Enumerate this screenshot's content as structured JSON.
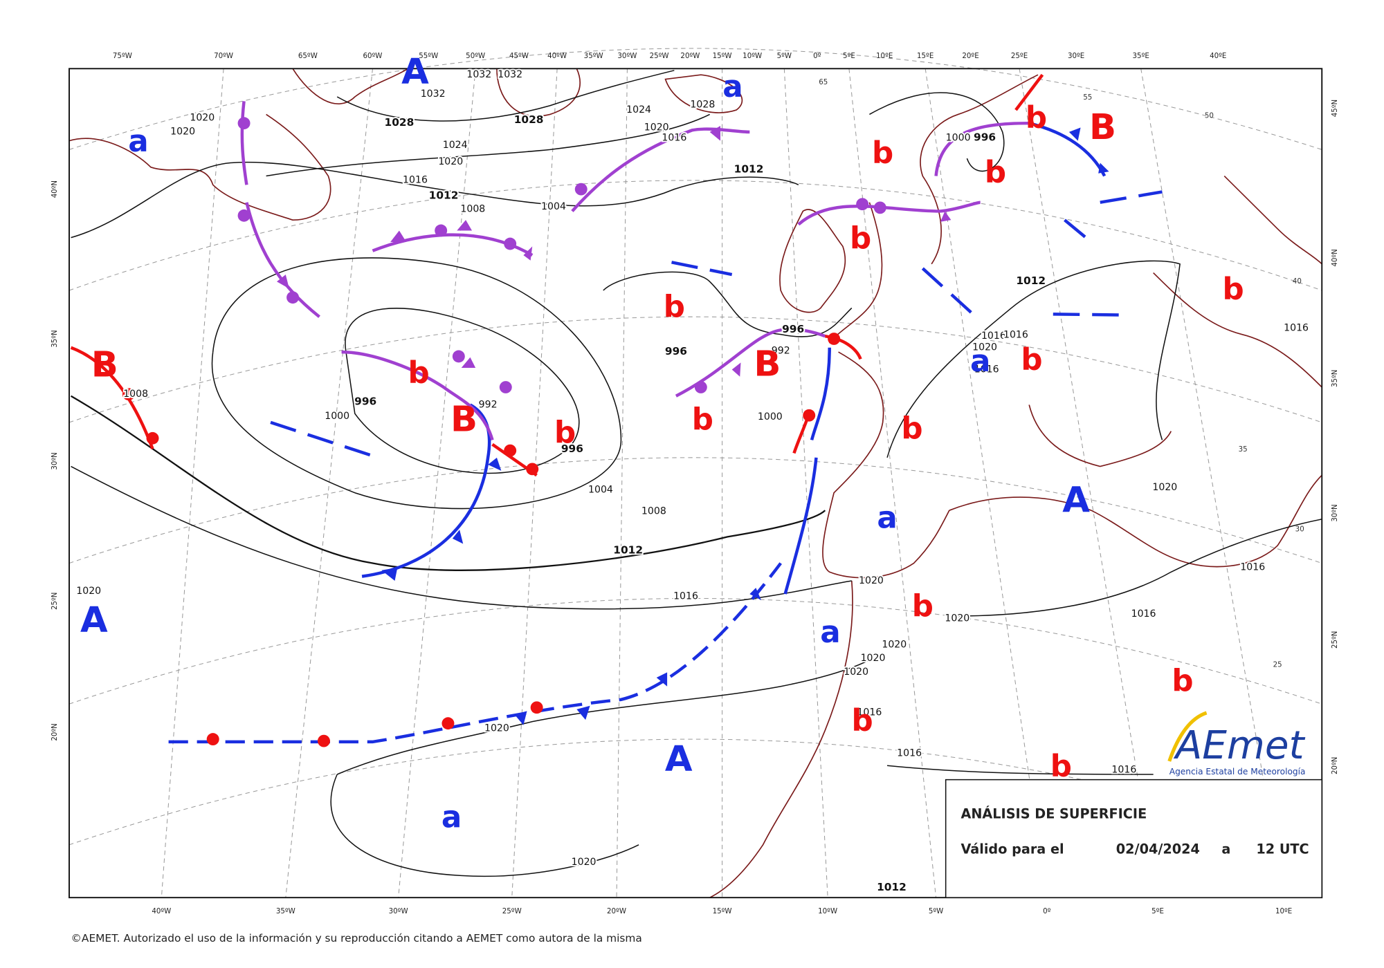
{
  "top_lon_labels": [
    "75ºW",
    "70ºW",
    "65ºW",
    "60ºW",
    "55ºW",
    "50ºW",
    "45ºW",
    "40ºW",
    "35ºW",
    "30ºW",
    "25ºW",
    "20ºW",
    "15ºW",
    "10ºW",
    "5ºW",
    "0º",
    "5ºE",
    "10ºE",
    "15ºE",
    "20ºE",
    "25ºE",
    "30ºE",
    "35ºE",
    "40ºE"
  ],
  "bottom_lon_labels": [
    "40ºW",
    "35ºW",
    "30ºW",
    "25ºW",
    "20ºW",
    "15ºW",
    "10ºW",
    "5ºW",
    "0º",
    "5ºE",
    "10ºE"
  ],
  "left_lat_labels": [
    "40ºN",
    "35ºN",
    "30ºN",
    "25ºN",
    "20ºN"
  ],
  "right_lat_labels": [
    "45ºN",
    "40ºN",
    "35ºN",
    "30ºN",
    "25ºN",
    "20ºN"
  ],
  "pressure_labels": [
    1020,
    1020,
    1032,
    1032,
    1032,
    1028,
    1028,
    1024,
    1028,
    1020,
    1016,
    1024,
    1020,
    1016,
    1012,
    1008,
    1012,
    1004,
    996,
    992,
    996,
    1000,
    996,
    1000,
    992,
    996,
    1004,
    1008,
    1012,
    1016,
    1020,
    1012,
    1016,
    1016,
    1020,
    1016,
    1020,
    1016,
    1020,
    1020,
    1016,
    1020,
    1020,
    1020,
    1016,
    1016,
    1016,
    1020,
    1020,
    1012,
    1008,
    1000,
    996,
    1016
  ],
  "sst_labels": [
    65,
    55,
    50,
    40,
    35,
    30,
    25
  ],
  "centers": [
    "A",
    "a",
    "a",
    "b",
    "B",
    "b",
    "b",
    "b",
    "b",
    "b",
    "B",
    "b",
    "B",
    "B",
    "b",
    "b",
    "a",
    "b",
    "b",
    "a",
    "A",
    "A",
    "b",
    "a",
    "b",
    "b",
    "A",
    "b",
    "a"
  ],
  "info_box": {
    "title": "ANÁLISIS DE SUPERFICIE",
    "valid_label": "Válido para el",
    "date": "02/04/2024",
    "at": "a",
    "time": "12 UTC"
  },
  "logo": {
    "name": "AEmet",
    "agency": "Agencia Estatal de Meteorología"
  },
  "footer": "©AEMET. Autorizado el uso de la información y su reproducción citando a AEMET como autora de la misma"
}
